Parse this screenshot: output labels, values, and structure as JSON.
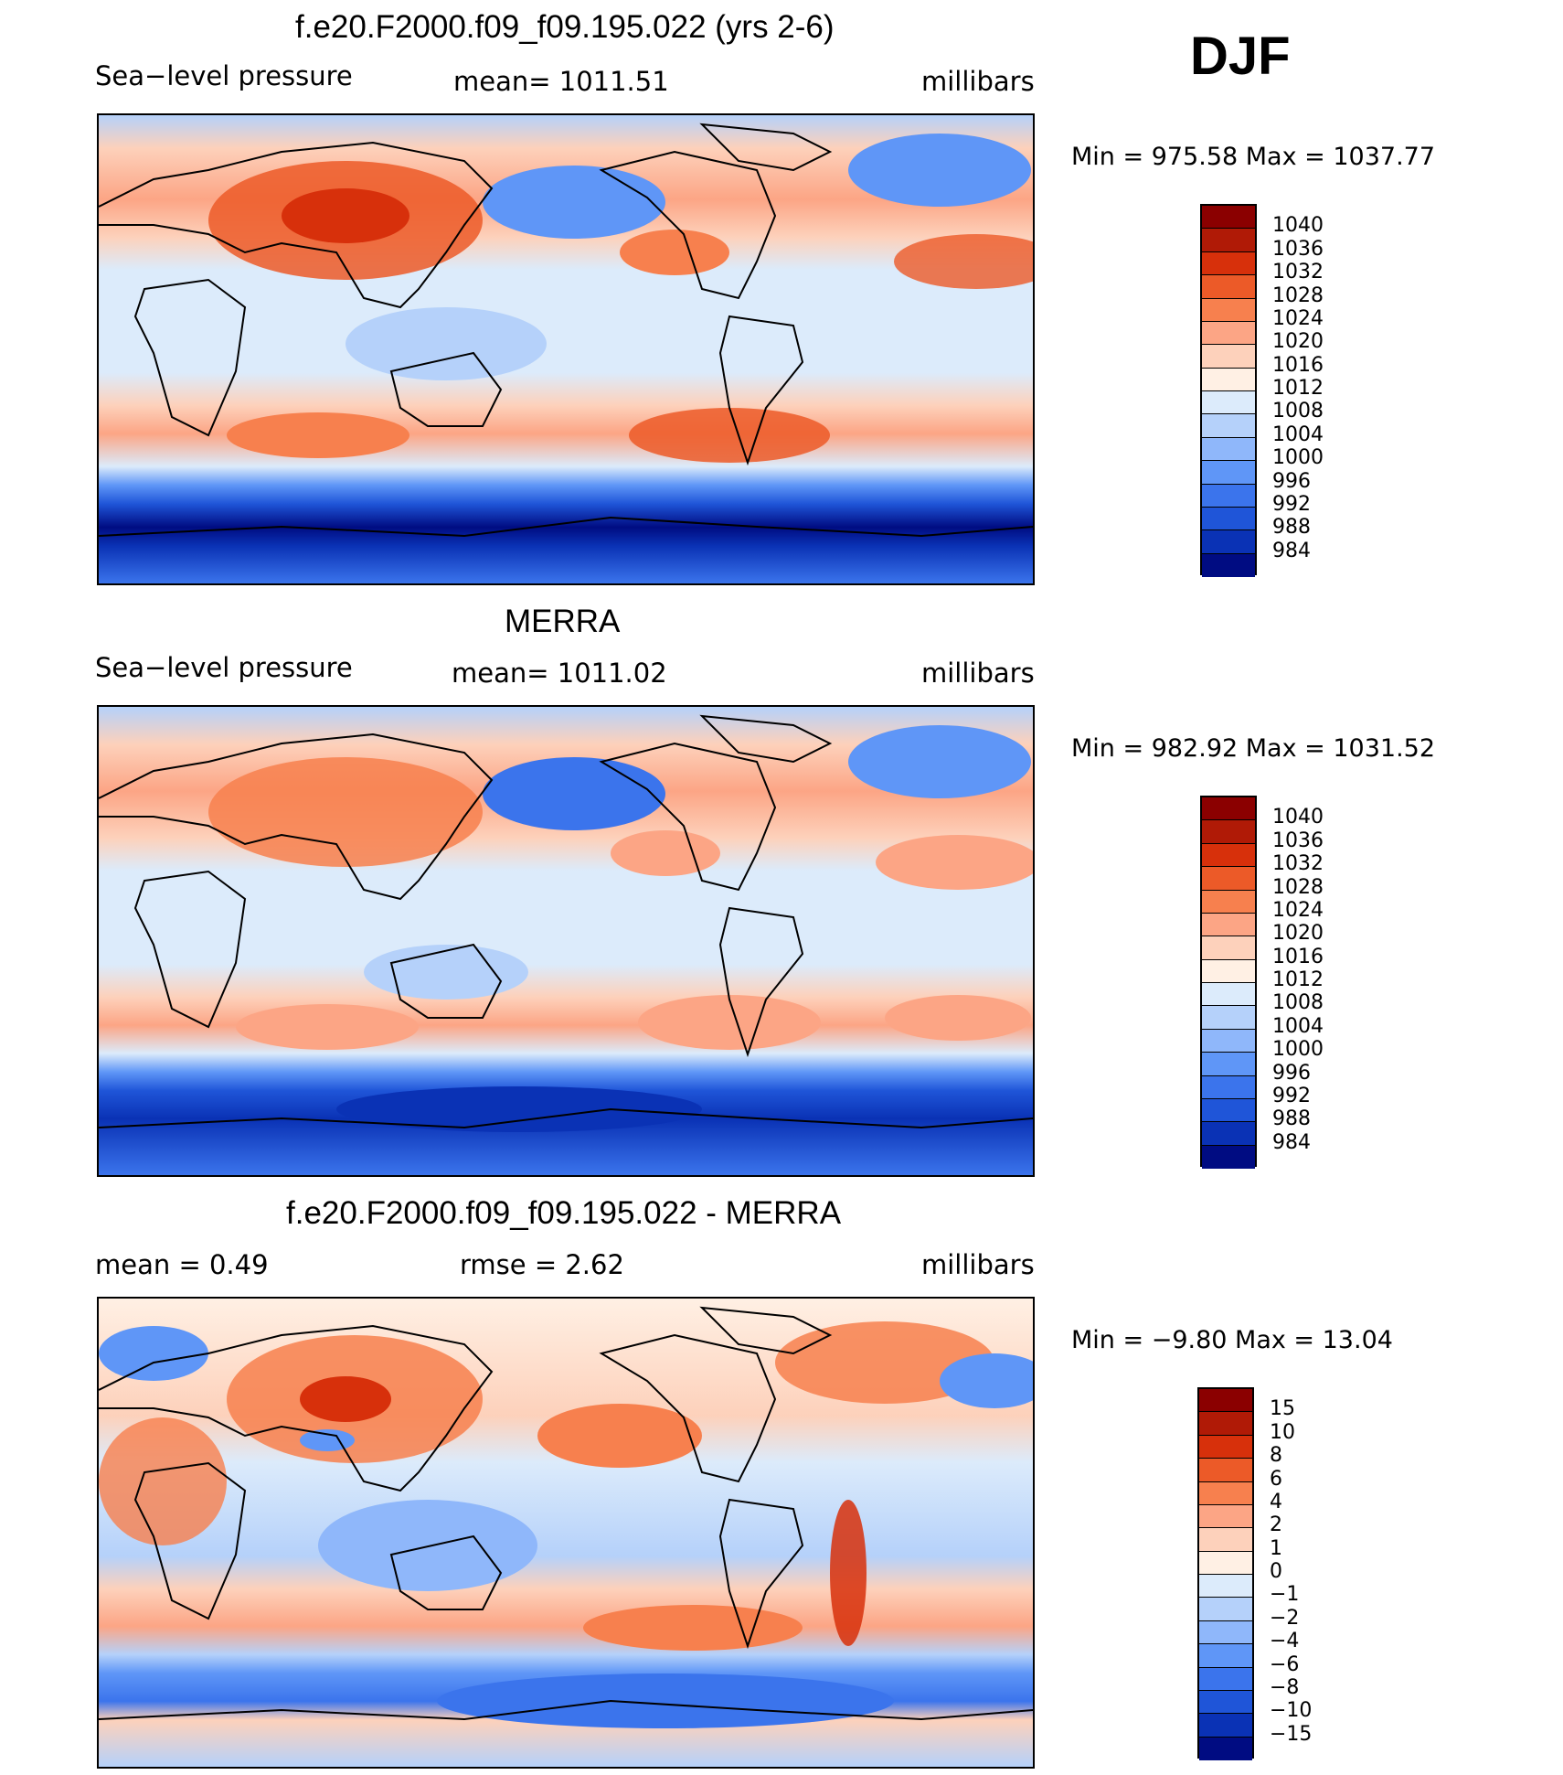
{
  "season": "DJF",
  "colors": {
    "abs": [
      "#8b0000",
      "#b01a06",
      "#d7300b",
      "#ec5a28",
      "#f7804e",
      "#fca585",
      "#fdd1bb",
      "#fff0e4",
      "#dcebfb",
      "#b5d1fa",
      "#8fb7fa",
      "#5f96f7",
      "#3b74ec",
      "#1f55d8",
      "#0a32b5",
      "#000c82"
    ],
    "diff": [
      "#8b0000",
      "#b01a06",
      "#d7300b",
      "#ec5a28",
      "#f7804e",
      "#fca585",
      "#fdd1bb",
      "#fff0e4",
      "#dcebfb",
      "#b5d1fa",
      "#8fb7fa",
      "#5f96f7",
      "#3b74ec",
      "#1f55d8",
      "#0a32b5",
      "#000c82"
    ]
  },
  "panels": [
    {
      "id": "model",
      "title": "f.e20.F2000.f09_f09.195.022 (yrs 2-6)",
      "left_label": "Sea−level pressure",
      "center_label": "mean=  1011.51",
      "units": "millibars",
      "minmax": "Min  =  975.58  Max  =  1037.77",
      "levels": [
        "1040",
        "1036",
        "1032",
        "1028",
        "1024",
        "1020",
        "1016",
        "1012",
        "1008",
        "1004",
        "1000",
        "996",
        "992",
        "988",
        "984"
      ]
    },
    {
      "id": "obs",
      "title": "MERRA",
      "left_label": "Sea−level pressure",
      "center_label": "mean=  1011.02",
      "units": "millibars",
      "minmax": "Min  =  982.92  Max  =  1031.52",
      "levels": [
        "1040",
        "1036",
        "1032",
        "1028",
        "1024",
        "1020",
        "1016",
        "1012",
        "1008",
        "1004",
        "1000",
        "996",
        "992",
        "988",
        "984"
      ]
    },
    {
      "id": "diff",
      "title": "f.e20.F2000.f09_f09.195.022 - MERRA",
      "left_label": "mean  =      0.49",
      "center_label": "rmse  =      2.62",
      "units": "millibars",
      "minmax": "Min  =    −9.80  Max  =     13.04",
      "levels": [
        "15",
        "10",
        "8",
        "6",
        "4",
        "2",
        "1",
        "0",
        "−1",
        "−2",
        "−4",
        "−6",
        "−8",
        "−10",
        "−15"
      ]
    }
  ]
}
